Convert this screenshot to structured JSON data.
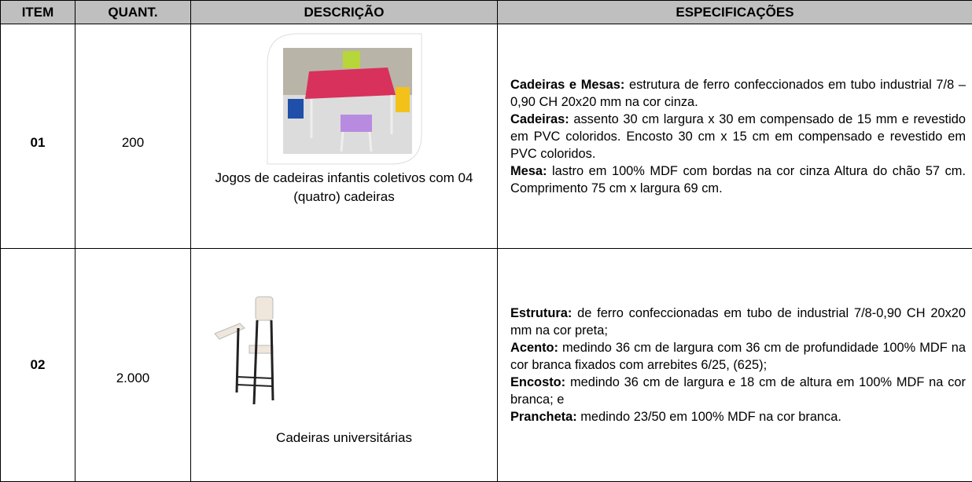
{
  "table": {
    "header": [
      "ITEM",
      "QUANT.",
      "DESCRIÇÃO",
      "ESPECIFICAÇÕES"
    ],
    "rows": [
      {
        "item": "01",
        "quantity": "200",
        "description": "Jogos de cadeiras infantis coletivos com 04 (quatro) cadeiras",
        "specifications": [
          {
            "label": "Cadeiras e Mesas:",
            "text": "estrutura de ferro confeccionados em tubo industrial 7/8 – 0,90 CH 20x20 mm na cor cinza."
          },
          {
            "label": "Cadeiras:",
            "text": "assento 30 cm largura x 30 em compensado de 15 mm e revestido em PVC coloridos. Encosto 30 cm x 15 cm em compensado e revestido em PVC coloridos."
          },
          {
            "label": "Mesa:",
            "text": "lastro em 100% MDF com bordas na cor cinza Altura do chão 57 cm. Comprimento 75 cm x largura 69 cm."
          }
        ]
      },
      {
        "item": "02",
        "quantity": "2.000",
        "description": "Cadeiras universitárias",
        "specifications": [
          {
            "label": "Estrutura:",
            "text": "de ferro confeccionadas em tubo de industrial 7/8-0,90 CH 20x20 mm na cor preta;"
          },
          {
            "label": "Acento:",
            "text": "medindo 36 cm de largura com 36 cm de profundidade 100% MDF na cor branca fixados com arrebites 6/25, (625);"
          },
          {
            "label": "Encosto:",
            "text": "medindo 36 cm de largura e 18 cm de altura em 100% MDF na cor branca; e"
          },
          {
            "label": "Prancheta:",
            "text": "medindo 23/50 em 100% MDF na cor branca."
          }
        ]
      }
    ]
  }
}
